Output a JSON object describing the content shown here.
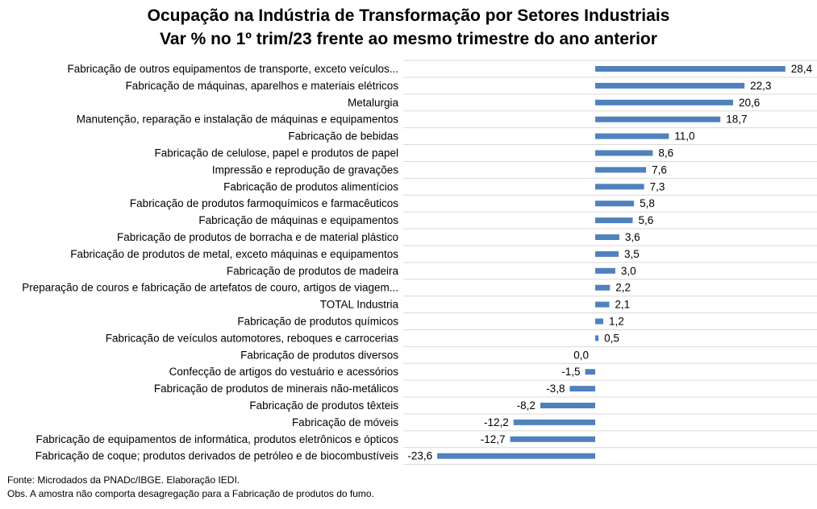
{
  "chart_data": {
    "type": "bar",
    "orientation": "horizontal",
    "title": "Ocupação na Indústria de Transformação por Setores Industriais",
    "subtitle": "Var % no 1º trim/23 frente ao mesmo trimestre do ano anterior",
    "categories": [
      "Fabricação de outros equipamentos de transporte, exceto veículos...",
      "Fabricação de máquinas, aparelhos e materiais elétricos",
      "Metalurgia",
      "Manutenção, reparação e instalação de máquinas e equipamentos",
      "Fabricação de bebidas",
      "Fabricação de celulose, papel e produtos de papel",
      "Impressão e reprodução de gravações",
      "Fabricação de produtos alimentícios",
      "Fabricação de produtos farmoquímicos e farmacêuticos",
      "Fabricação de máquinas e equipamentos",
      "Fabricação de produtos de borracha e de material plástico",
      "Fabricação de produtos de metal, exceto máquinas e equipamentos",
      "Fabricação de produtos de madeira",
      "Preparação de couros e fabricação de artefatos de couro, artigos de viagem...",
      "TOTAL Industria",
      "Fabricação de produtos químicos",
      "Fabricação de veículos automotores, reboques e carrocerias",
      "Fabricação de produtos diversos",
      "Confecção de artigos do vestuário e acessórios",
      "Fabricação de produtos de minerais não-metálicos",
      "Fabricação de produtos têxteis",
      "Fabricação de móveis",
      "Fabricação de equipamentos de informática, produtos eletrônicos e ópticos",
      "Fabricação de coque; produtos derivados de petróleo e de biocombustíveis"
    ],
    "values": [
      28.4,
      22.3,
      20.6,
      18.7,
      11.0,
      8.6,
      7.6,
      7.3,
      5.8,
      5.6,
      3.6,
      3.5,
      3.0,
      2.2,
      2.1,
      1.2,
      0.5,
      0.0,
      -1.5,
      -3.8,
      -8.2,
      -12.2,
      -12.7,
      -23.6
    ],
    "value_labels": [
      "28,4",
      "22,3",
      "20,6",
      "18,7",
      "11,0",
      "8,6",
      "7,6",
      "7,3",
      "5,8",
      "5,6",
      "3,6",
      "3,5",
      "3,0",
      "2,2",
      "2,1",
      "1,2",
      "0,5",
      "0,0",
      "-1,5",
      "-3,8",
      "-8,2",
      "-12,2",
      "-12,7",
      "-23,6"
    ],
    "xlim": [
      -23.6,
      28.4
    ],
    "grid": true,
    "bar_color": "#4f81bd",
    "grid_color": "#d9d9d9"
  },
  "footnotes": {
    "source": "Fonte: Microdados da PNADc/IBGE. Elaboração IEDI.",
    "note": "Obs. A amostra não comporta desagregação para a Fabricação de produtos do fumo."
  }
}
